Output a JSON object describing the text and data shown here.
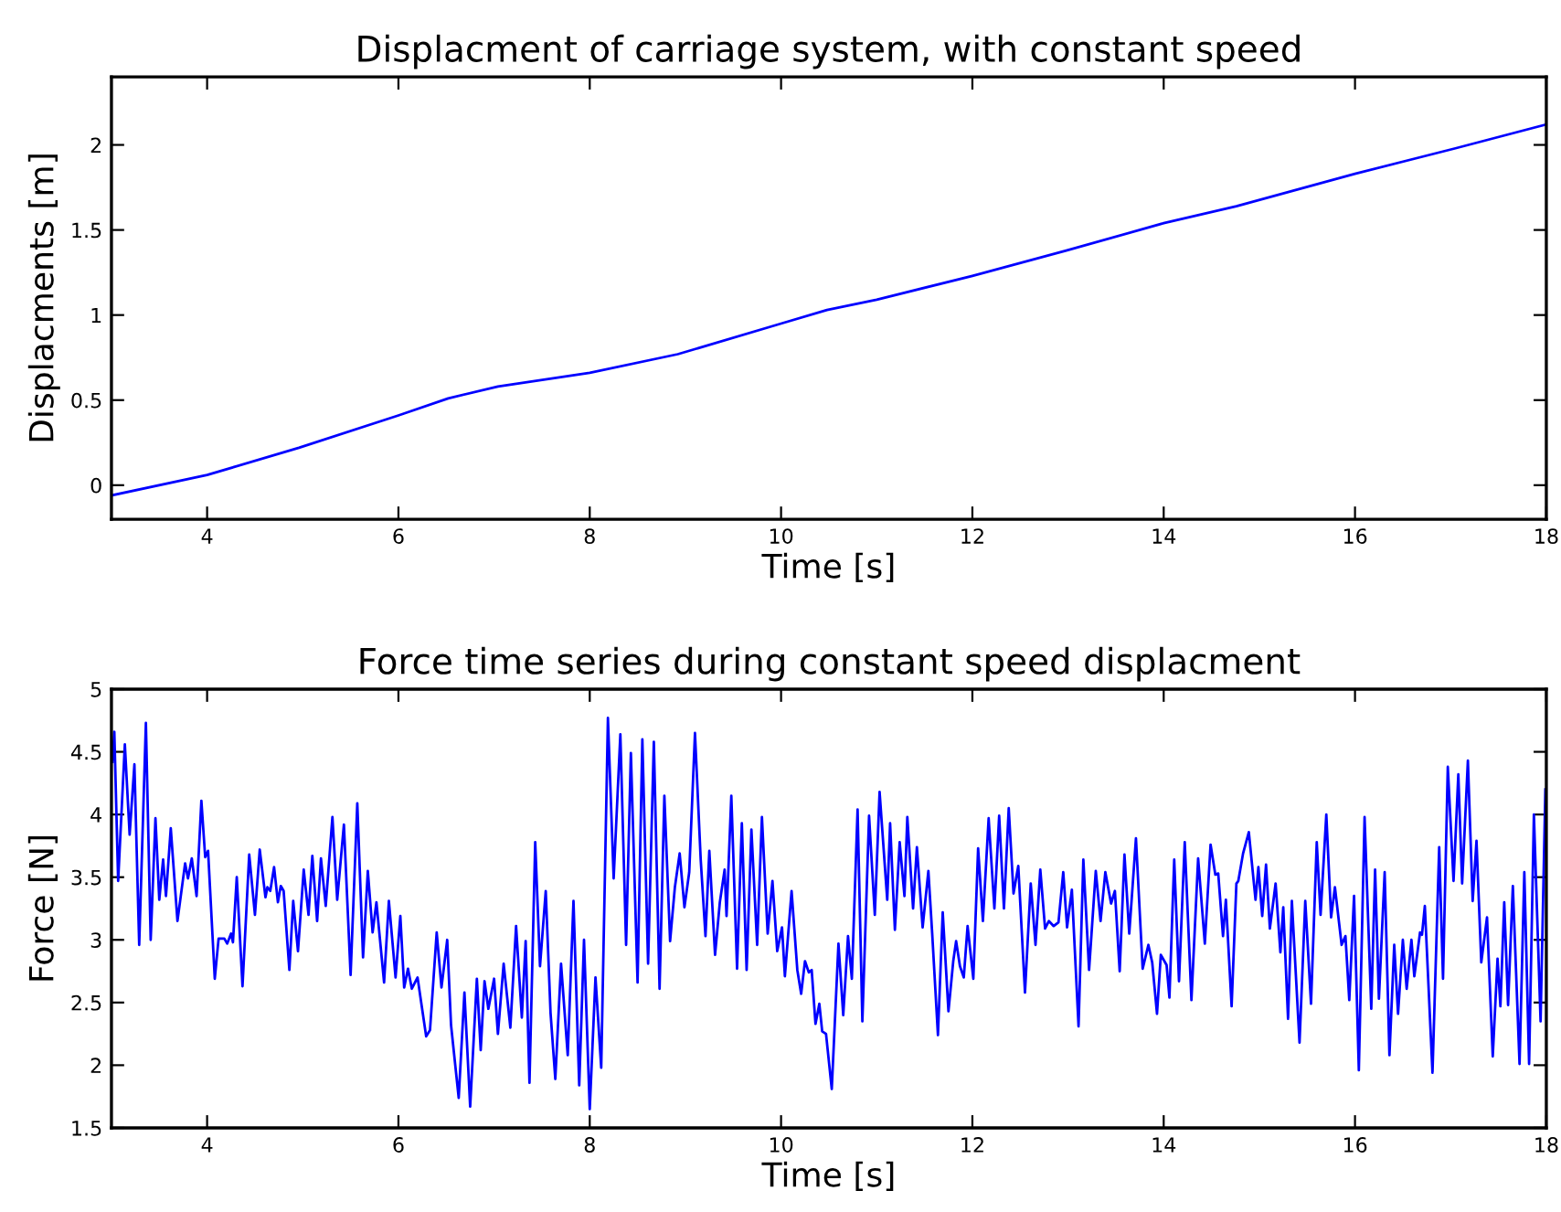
{
  "chart_data": [
    {
      "type": "line",
      "title": "Displacment of carriage system, with constant speed",
      "xlabel": "Time [s]",
      "ylabel": "Displacments [m]",
      "xlim": [
        3,
        18
      ],
      "ylim": [
        -0.2,
        2.4
      ],
      "xticks": [
        4,
        6,
        8,
        10,
        12,
        14,
        16,
        18
      ],
      "yticks": [
        0,
        0.5,
        1,
        1.5,
        2
      ],
      "grid": false,
      "series": [
        {
          "color": "#0000ff",
          "x": [
            3.0,
            4.0,
            4.96,
            6.0,
            6.52,
            7.04,
            8.0,
            8.92,
            10.0,
            10.48,
            11.0,
            12.0,
            12.99,
            14.0,
            14.76,
            16.0,
            17.05,
            18.0
          ],
          "values": [
            -0.06,
            0.06,
            0.22,
            0.41,
            0.51,
            0.58,
            0.66,
            0.77,
            0.95,
            1.03,
            1.09,
            1.23,
            1.38,
            1.54,
            1.64,
            1.83,
            1.98,
            2.12
          ]
        }
      ]
    },
    {
      "type": "line",
      "title": "Force time series during constant speed displacment",
      "xlabel": "Time [s]",
      "ylabel": "Force [N]",
      "xlim": [
        3,
        18
      ],
      "ylim": [
        1.5,
        5
      ],
      "xticks": [
        4,
        6,
        8,
        10,
        12,
        14,
        16,
        18
      ],
      "yticks": [
        1.5,
        2,
        2.5,
        3,
        3.5,
        4,
        4.5,
        5
      ],
      "grid": false,
      "series": [
        {
          "color": "#0000ff",
          "x": [
            3.01,
            3.03,
            3.07,
            3.14,
            3.19,
            3.24,
            3.29,
            3.36,
            3.41,
            3.46,
            3.5,
            3.54,
            3.57,
            3.62,
            3.69,
            3.77,
            3.8,
            3.84,
            3.89,
            3.94,
            3.98,
            4.01,
            4.08,
            4.12,
            4.18,
            4.21,
            4.25,
            4.27,
            4.31,
            4.37,
            4.44,
            4.5,
            4.55,
            4.61,
            4.63,
            4.66,
            4.7,
            4.74,
            4.77,
            4.8,
            4.86,
            4.9,
            4.95,
            5.01,
            5.06,
            5.1,
            5.15,
            5.19,
            5.24,
            5.31,
            5.36,
            5.43,
            5.5,
            5.57,
            5.63,
            5.68,
            5.73,
            5.77,
            5.85,
            5.9,
            5.97,
            6.02,
            6.06,
            6.1,
            6.14,
            6.2,
            6.24,
            6.29,
            6.33,
            6.4,
            6.45,
            6.51,
            6.55,
            6.63,
            6.69,
            6.75,
            6.82,
            6.86,
            6.9,
            6.94,
            7.0,
            7.04,
            7.1,
            7.17,
            7.23,
            7.29,
            7.33,
            7.37,
            7.43,
            7.48,
            7.54,
            7.59,
            7.64,
            7.7,
            7.77,
            7.83,
            7.89,
            7.94,
            8.0,
            8.06,
            8.12,
            8.19,
            8.25,
            8.32,
            8.38,
            8.43,
            8.5,
            8.55,
            8.61,
            8.67,
            8.73,
            8.78,
            8.84,
            8.89,
            8.94,
            8.99,
            9.04,
            9.1,
            9.16,
            9.21,
            9.25,
            9.31,
            9.36,
            9.41,
            9.43,
            9.48,
            9.54,
            9.59,
            9.64,
            9.69,
            9.75,
            9.8,
            9.86,
            9.91,
            9.96,
            10.01,
            10.04,
            10.11,
            10.17,
            10.21,
            10.25,
            10.29,
            10.32,
            10.36,
            10.4,
            10.43,
            10.47,
            10.53,
            10.6,
            10.65,
            10.7,
            10.74,
            10.8,
            10.85,
            10.92,
            10.98,
            11.03,
            11.11,
            11.14,
            11.19,
            11.24,
            11.29,
            11.32,
            11.38,
            11.42,
            11.48,
            11.54,
            11.58,
            11.64,
            11.69,
            11.75,
            11.8,
            11.83,
            11.87,
            11.91,
            11.95,
            12.01,
            12.06,
            12.11,
            12.17,
            12.23,
            12.28,
            12.33,
            12.38,
            12.43,
            12.48,
            12.55,
            12.61,
            12.66,
            12.71,
            12.76,
            12.8,
            12.85,
            12.9,
            12.95,
            12.99,
            13.04,
            13.11,
            13.16,
            13.22,
            13.29,
            13.34,
            13.39,
            13.45,
            13.49,
            13.54,
            13.59,
            13.64,
            13.71,
            13.78,
            13.84,
            13.88,
            13.93,
            13.97,
            14.03,
            14.06,
            14.11,
            14.16,
            14.22,
            14.29,
            14.36,
            14.43,
            14.49,
            14.54,
            14.57,
            14.62,
            14.65,
            14.71,
            14.76,
            14.78,
            14.83,
            14.89,
            14.96,
            14.99,
            15.03,
            15.07,
            15.11,
            15.17,
            15.22,
            15.25,
            15.3,
            15.34,
            15.42,
            15.48,
            15.54,
            15.6,
            15.64,
            15.7,
            15.75,
            15.79,
            15.86,
            15.9,
            15.94,
            15.99,
            16.04,
            16.1,
            16.17,
            16.21,
            16.25,
            16.31,
            16.36,
            16.41,
            16.45,
            16.5,
            16.54,
            16.59,
            16.62,
            16.68,
            16.7,
            16.73,
            16.81,
            16.88,
            16.92,
            16.97,
            17.03,
            17.08,
            17.12,
            17.18,
            17.23,
            17.27,
            17.32,
            17.38,
            17.44,
            17.49,
            17.52,
            17.56,
            17.6,
            17.65,
            17.72,
            17.77,
            17.82,
            17.87,
            17.94,
            17.99
          ],
          "values": [
            4.42,
            4.66,
            3.47,
            4.56,
            3.84,
            4.4,
            2.96,
            4.73,
            3.0,
            3.97,
            3.32,
            3.64,
            3.35,
            3.89,
            3.15,
            3.61,
            3.49,
            3.65,
            3.35,
            4.11,
            3.66,
            3.71,
            2.69,
            3.01,
            3.01,
            2.97,
            3.05,
            2.98,
            3.5,
            2.63,
            3.68,
            3.2,
            3.72,
            3.34,
            3.42,
            3.39,
            3.58,
            3.3,
            3.43,
            3.39,
            2.76,
            3.31,
            2.91,
            3.56,
            3.2,
            3.67,
            3.15,
            3.65,
            3.27,
            3.98,
            3.32,
            3.92,
            2.72,
            4.09,
            2.86,
            3.55,
            3.06,
            3.3,
            2.66,
            3.31,
            2.7,
            3.19,
            2.62,
            2.77,
            2.61,
            2.7,
            2.49,
            2.23,
            2.28,
            3.06,
            2.62,
            3.0,
            2.32,
            1.74,
            2.58,
            1.67,
            2.69,
            2.12,
            2.67,
            2.45,
            2.69,
            2.25,
            2.81,
            2.3,
            3.11,
            2.38,
            2.99,
            1.86,
            3.78,
            2.79,
            3.39,
            2.42,
            1.89,
            2.81,
            2.08,
            3.31,
            1.84,
            3.0,
            1.65,
            2.7,
            1.98,
            4.77,
            3.49,
            4.64,
            2.96,
            4.49,
            2.66,
            4.6,
            2.81,
            4.58,
            2.61,
            4.15,
            2.99,
            3.42,
            3.69,
            3.26,
            3.54,
            4.65,
            3.64,
            3.03,
            3.71,
            2.88,
            3.3,
            3.56,
            3.19,
            4.15,
            2.77,
            3.93,
            2.76,
            3.88,
            2.96,
            3.98,
            3.05,
            3.47,
            2.91,
            3.1,
            2.71,
            3.39,
            2.76,
            2.57,
            2.83,
            2.74,
            2.76,
            2.33,
            2.49,
            2.27,
            2.25,
            1.81,
            2.97,
            2.4,
            3.03,
            2.69,
            4.04,
            2.35,
            3.99,
            3.2,
            4.18,
            3.32,
            3.93,
            3.08,
            3.78,
            3.35,
            3.98,
            3.25,
            3.74,
            3.1,
            3.55,
            3.05,
            2.24,
            3.22,
            2.43,
            2.83,
            2.99,
            2.79,
            2.7,
            3.11,
            2.69,
            3.73,
            3.15,
            3.97,
            3.25,
            3.99,
            3.25,
            4.05,
            3.37,
            3.59,
            2.58,
            3.45,
            2.96,
            3.56,
            3.09,
            3.15,
            3.11,
            3.14,
            3.54,
            3.1,
            3.4,
            2.31,
            3.64,
            2.76,
            3.55,
            3.15,
            3.54,
            3.29,
            3.39,
            2.75,
            3.68,
            3.05,
            3.81,
            2.77,
            2.96,
            2.82,
            2.41,
            2.88,
            2.8,
            2.54,
            3.64,
            2.67,
            3.78,
            2.52,
            3.65,
            2.97,
            3.76,
            3.52,
            3.53,
            3.03,
            3.32,
            2.47,
            3.45,
            3.47,
            3.69,
            3.86,
            3.32,
            3.58,
            3.19,
            3.6,
            3.09,
            3.45,
            2.9,
            3.26,
            2.37,
            3.31,
            2.18,
            3.31,
            2.49,
            3.78,
            3.2,
            4.0,
            3.18,
            3.42,
            2.96,
            3.03,
            2.52,
            3.35,
            1.96,
            3.98,
            2.45,
            3.56,
            2.53,
            3.54,
            2.08,
            2.96,
            2.41,
            3.0,
            2.61,
            3.0,
            2.71,
            3.06,
            3.04,
            3.27,
            1.94,
            3.74,
            2.69,
            4.38,
            3.47,
            4.32,
            3.45,
            4.43,
            3.31,
            3.79,
            2.82,
            3.18,
            2.07,
            2.85,
            2.47,
            3.3,
            2.48,
            3.43,
            2.01,
            3.54,
            2.01,
            4.0,
            2.35,
            4.2
          ]
        }
      ]
    }
  ]
}
